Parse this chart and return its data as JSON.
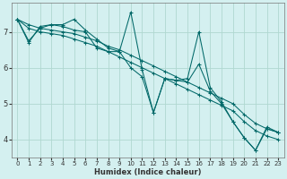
{
  "xlabel": "Humidex (Indice chaleur)",
  "bg_color": "#d4f0f0",
  "grid_color": "#b0d8d0",
  "line_color": "#006868",
  "xlim": [
    -0.5,
    23.5
  ],
  "ylim": [
    3.5,
    7.8
  ],
  "xticks": [
    0,
    1,
    2,
    3,
    4,
    5,
    6,
    7,
    8,
    9,
    10,
    11,
    12,
    13,
    14,
    15,
    16,
    17,
    18,
    19,
    20,
    21,
    22,
    23
  ],
  "yticks": [
    4,
    5,
    6,
    7
  ],
  "lines": [
    {
      "x": [
        0,
        1,
        2,
        3,
        4,
        5,
        6,
        7,
        8,
        9,
        10,
        11,
        12,
        13,
        14,
        15,
        16,
        17,
        18,
        19,
        20,
        21,
        22,
        23
      ],
      "y": [
        7.35,
        7.2,
        7.1,
        7.05,
        7.0,
        6.95,
        6.85,
        6.75,
        6.6,
        6.5,
        6.35,
        6.2,
        6.05,
        5.9,
        5.75,
        5.6,
        5.45,
        5.3,
        5.15,
        5.0,
        4.7,
        4.45,
        4.3,
        4.2
      ]
    },
    {
      "x": [
        0,
        1,
        2,
        3,
        4,
        5,
        6,
        7,
        8,
        9,
        10,
        11,
        12,
        13,
        14,
        15,
        16,
        17,
        18,
        19,
        20,
        21,
        22,
        23
      ],
      "y": [
        7.35,
        7.1,
        7.0,
        6.95,
        6.9,
        6.8,
        6.7,
        6.6,
        6.45,
        6.3,
        6.15,
        6.0,
        5.85,
        5.7,
        5.55,
        5.4,
        5.25,
        5.1,
        4.95,
        4.8,
        4.5,
        4.25,
        4.1,
        4.0
      ]
    },
    {
      "x": [
        0,
        1,
        2,
        3,
        4,
        5,
        6,
        7,
        8,
        9,
        10,
        11,
        12,
        13,
        14,
        15,
        16,
        17,
        18,
        19,
        20,
        21,
        22,
        23
      ],
      "y": [
        7.35,
        6.7,
        7.15,
        7.2,
        7.2,
        7.35,
        7.05,
        6.8,
        6.55,
        6.45,
        7.55,
        5.95,
        4.75,
        5.7,
        5.65,
        5.7,
        7.0,
        5.45,
        5.05,
        4.5,
        4.05,
        3.7,
        4.35,
        4.2
      ]
    },
    {
      "x": [
        0,
        1,
        2,
        3,
        4,
        5,
        6,
        7,
        8,
        9,
        10,
        11,
        12,
        13,
        14,
        15,
        16,
        17,
        18,
        19,
        20,
        21,
        22,
        23
      ],
      "y": [
        7.35,
        6.75,
        7.1,
        7.2,
        7.15,
        7.05,
        7.0,
        6.55,
        6.45,
        6.45,
        6.0,
        5.75,
        4.75,
        5.7,
        5.65,
        5.6,
        6.1,
        5.35,
        5.0,
        4.5,
        4.05,
        3.7,
        4.3,
        4.2
      ]
    }
  ]
}
